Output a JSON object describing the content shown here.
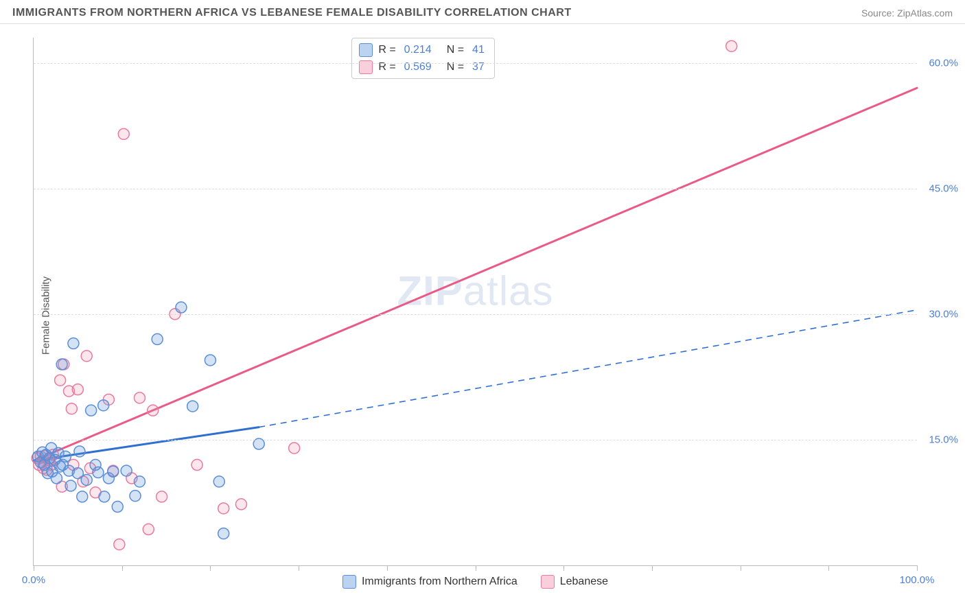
{
  "header": {
    "title": "IMMIGRANTS FROM NORTHERN AFRICA VS LEBANESE FEMALE DISABILITY CORRELATION CHART",
    "source": "Source: ZipAtlas.com"
  },
  "watermark": {
    "zip": "ZIP",
    "atlas": "atlas"
  },
  "y_axis": {
    "label": "Female Disability",
    "ticks": [
      {
        "value": 15.0,
        "label": "15.0%"
      },
      {
        "value": 30.0,
        "label": "30.0%"
      },
      {
        "value": 45.0,
        "label": "45.0%"
      },
      {
        "value": 60.0,
        "label": "60.0%"
      }
    ],
    "min": 0,
    "max": 63
  },
  "x_axis": {
    "min": 0,
    "max": 100,
    "label_start": "0.0%",
    "label_end": "100.0%",
    "tick_values": [
      0,
      10,
      20,
      30,
      40,
      50,
      60,
      70,
      80,
      90,
      100
    ]
  },
  "series": {
    "blue": {
      "name": "Immigants from Northern Africa",
      "legend_label": "Immigrants from Northern Africa",
      "color_fill": "rgba(100,150,220,0.28)",
      "color_stroke": "#5a8dd6",
      "swatch_fill": "rgba(120,165,225,0.5)",
      "swatch_border": "#5a8dd6",
      "R": "0.214",
      "N": "41",
      "marker_radius": 8,
      "trend": {
        "color": "#2f6fd0",
        "solid_from": [
          0,
          12.5
        ],
        "solid_to": [
          25.5,
          16.5
        ],
        "dash_from": [
          25.5,
          16.5
        ],
        "dash_to": [
          100,
          30.5
        ]
      },
      "points": [
        [
          0.5,
          13.0
        ],
        [
          0.8,
          12.3
        ],
        [
          1.0,
          13.5
        ],
        [
          1.2,
          12.0
        ],
        [
          1.4,
          13.2
        ],
        [
          1.6,
          11.0
        ],
        [
          1.8,
          12.8
        ],
        [
          2.0,
          14.0
        ],
        [
          2.1,
          11.2
        ],
        [
          2.4,
          12.6
        ],
        [
          2.6,
          10.4
        ],
        [
          2.8,
          13.4
        ],
        [
          3.0,
          11.8
        ],
        [
          3.2,
          24.0
        ],
        [
          3.3,
          12.0
        ],
        [
          3.6,
          13.0
        ],
        [
          4.0,
          11.3
        ],
        [
          4.2,
          9.5
        ],
        [
          4.5,
          26.5
        ],
        [
          5.0,
          11.0
        ],
        [
          5.2,
          13.6
        ],
        [
          5.5,
          8.2
        ],
        [
          6.0,
          10.2
        ],
        [
          6.5,
          18.5
        ],
        [
          7.0,
          12.0
        ],
        [
          7.3,
          11.1
        ],
        [
          7.9,
          19.1
        ],
        [
          8.0,
          8.2
        ],
        [
          8.5,
          10.4
        ],
        [
          9.0,
          11.2
        ],
        [
          9.5,
          7.0
        ],
        [
          10.5,
          11.3
        ],
        [
          11.5,
          8.3
        ],
        [
          12.0,
          10.0
        ],
        [
          14.0,
          27.0
        ],
        [
          16.7,
          30.8
        ],
        [
          18.0,
          19.0
        ],
        [
          20.0,
          24.5
        ],
        [
          21.0,
          10
        ],
        [
          21.5,
          3.8
        ],
        [
          25.5,
          14.5
        ]
      ]
    },
    "pink": {
      "name": "Lebanese",
      "legend_label": "Lebanese",
      "color_fill": "rgba(244,140,170,0.22)",
      "color_stroke": "#e77a9e",
      "swatch_fill": "rgba(244,160,185,0.5)",
      "swatch_border": "#e77a9e",
      "R": "0.569",
      "N": "37",
      "marker_radius": 8,
      "trend": {
        "color": "#ea5a87",
        "solid_from": [
          0,
          12.5
        ],
        "solid_to": [
          100,
          57.0
        ]
      },
      "points": [
        [
          0.4,
          12.8
        ],
        [
          0.6,
          12.0
        ],
        [
          0.8,
          13.0
        ],
        [
          1.0,
          12.3
        ],
        [
          1.1,
          11.6
        ],
        [
          1.3,
          13.1
        ],
        [
          1.5,
          11.4
        ],
        [
          1.7,
          12.6
        ],
        [
          1.8,
          12.5
        ],
        [
          2.0,
          12.0
        ],
        [
          2.2,
          13.2
        ],
        [
          3.0,
          22.1
        ],
        [
          3.2,
          9.4
        ],
        [
          3.4,
          24.0
        ],
        [
          4.0,
          20.8
        ],
        [
          4.3,
          18.7
        ],
        [
          4.5,
          12.0
        ],
        [
          5.0,
          21.0
        ],
        [
          5.6,
          10.0
        ],
        [
          6.0,
          25.0
        ],
        [
          6.4,
          11.6
        ],
        [
          7.0,
          8.7
        ],
        [
          8.5,
          19.8
        ],
        [
          9.0,
          11.3
        ],
        [
          9.7,
          2.5
        ],
        [
          10.2,
          51.5
        ],
        [
          11.1,
          10.4
        ],
        [
          12.0,
          20.0
        ],
        [
          13.0,
          4.3
        ],
        [
          13.5,
          18.5
        ],
        [
          14.5,
          8.2
        ],
        [
          16.0,
          30.0
        ],
        [
          18.5,
          12.0
        ],
        [
          21.5,
          6.8
        ],
        [
          23.5,
          7.3
        ],
        [
          29.5,
          14.0
        ],
        [
          79.0,
          62.0
        ]
      ]
    }
  },
  "stats_legend": {
    "r_label": "R =",
    "n_label": "N ="
  },
  "colors": {
    "grid": "#dddddd",
    "axis": "#bbbbbb",
    "tick_text": "#4a7fd6"
  }
}
